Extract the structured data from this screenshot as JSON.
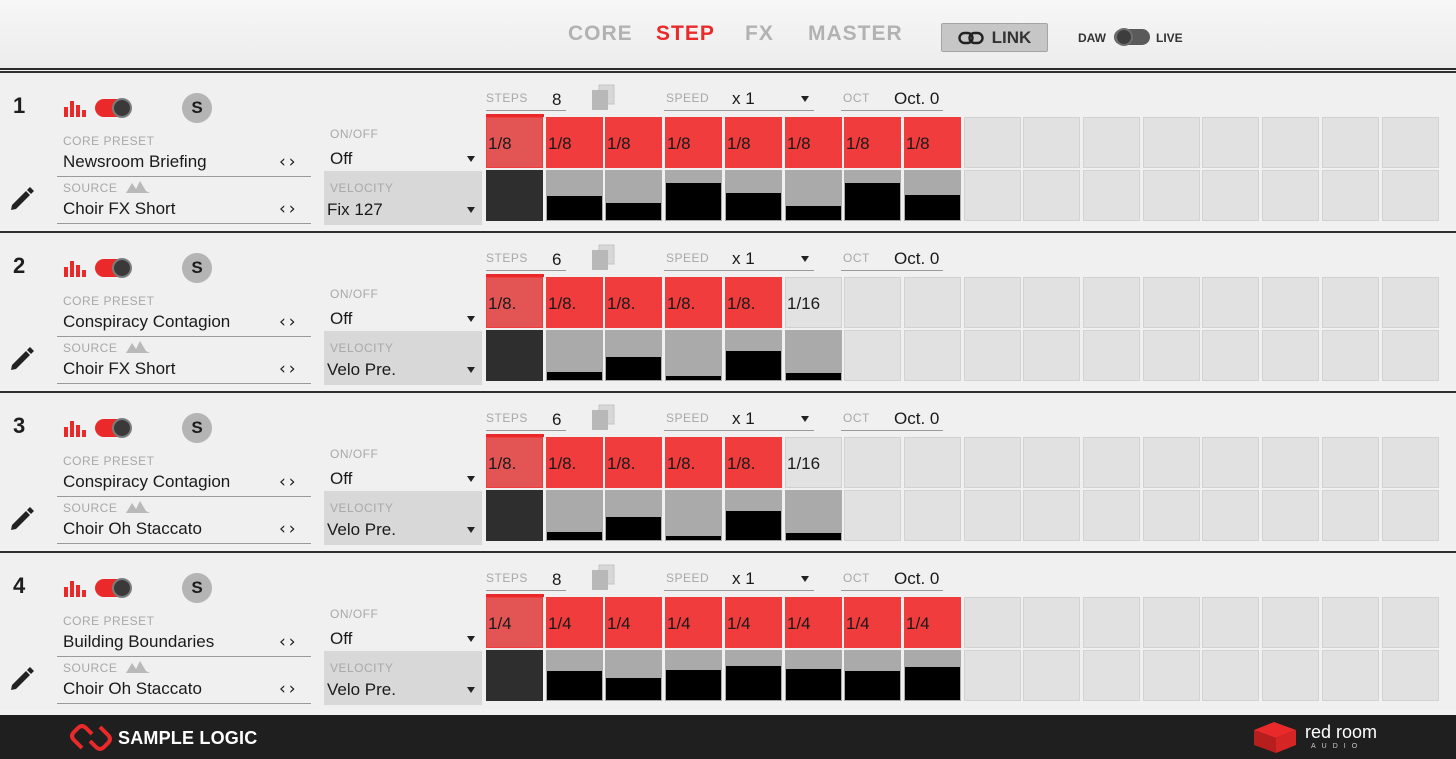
{
  "nav": {
    "tabs": [
      {
        "label": "CORE",
        "active": false
      },
      {
        "label": "STEP",
        "active": true
      },
      {
        "label": "FX",
        "active": false
      },
      {
        "label": "MASTER",
        "active": false
      }
    ],
    "link_label": "LINK",
    "daw_label": "DAW",
    "live_label": "LIVE"
  },
  "labels": {
    "core_preset": "CORE PRESET",
    "source": "SOURCE",
    "onoff": "ON/OFF",
    "velocity": "VELOCITY",
    "steps": "STEPS",
    "speed": "SPEED",
    "oct": "OCT",
    "solo": "S"
  },
  "tracks": [
    {
      "number": "1",
      "core_preset": "Newsroom Briefing",
      "source": "Choir FX Short",
      "onoff": "Off",
      "velocity": "Fix 127",
      "steps": "8",
      "speed": "x 1",
      "oct": "Oct. 0",
      "step_values": [
        "1/8",
        "1/8",
        "1/8",
        "1/8",
        "1/8",
        "1/8",
        "1/8",
        "1/8"
      ],
      "velocities": [
        1.0,
        0.65,
        0.45,
        1.0,
        0.72,
        0.38,
        1.0,
        0.68
      ]
    },
    {
      "number": "2",
      "core_preset": "Conspiracy Contagion",
      "source": "Choir FX Short",
      "onoff": "Off",
      "velocity": "Velo Pre.",
      "steps": "6",
      "speed": "x 1",
      "oct": "Oct. 0",
      "step_values": [
        "1/8.",
        "1/8.",
        "1/8.",
        "1/8.",
        "1/8.",
        "1/16"
      ],
      "velocities": [
        1.0,
        0.22,
        0.62,
        0.12,
        0.78,
        0.18
      ]
    },
    {
      "number": "3",
      "core_preset": "Conspiracy Contagion",
      "source": "Choir Oh Staccato",
      "onoff": "Off",
      "velocity": "Velo Pre.",
      "steps": "6",
      "speed": "x 1",
      "oct": "Oct. 0",
      "step_values": [
        "1/8.",
        "1/8.",
        "1/8.",
        "1/8.",
        "1/8.",
        "1/16"
      ],
      "velocities": [
        1.0,
        0.22,
        0.62,
        0.12,
        0.78,
        0.18
      ]
    },
    {
      "number": "4",
      "core_preset": "Building Boundaries",
      "source": "Choir Oh Staccato",
      "onoff": "Off",
      "velocity": "Velo Pre.",
      "steps": "8",
      "speed": "x 1",
      "oct": "Oct. 0",
      "step_values": [
        "1/4",
        "1/4",
        "1/4",
        "1/4",
        "1/4",
        "1/4",
        "1/4",
        "1/4"
      ],
      "velocities": [
        1.0,
        0.78,
        0.6,
        0.8,
        0.92,
        0.85,
        0.78,
        0.9
      ]
    }
  ],
  "footer": {
    "brand": "SAMPLE LOGIC",
    "partner": "red room",
    "partner_sub": "AUDIO"
  },
  "colors": {
    "accent": "#ea2a2a",
    "step_on": "#f03c3c",
    "footer_bg": "#1f1f1f"
  }
}
